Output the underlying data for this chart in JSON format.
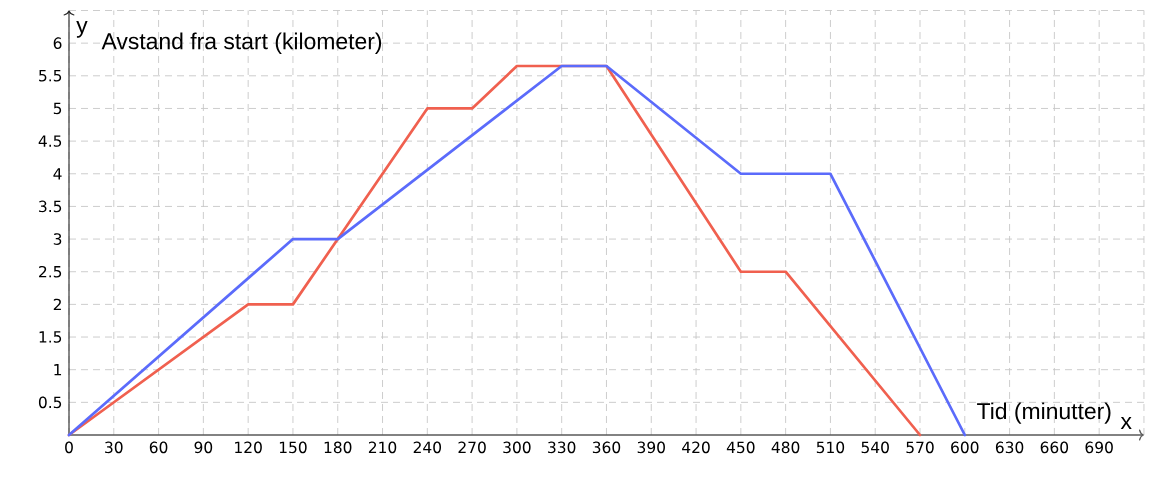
{
  "chart_data": {
    "type": "line",
    "xlabel": "Tid (minutter)",
    "ylabel": "Avstand fra start (kilometer)",
    "annotations": [
      "y",
      "x"
    ],
    "series": [
      {
        "color": "#f0604f",
        "x": [
          0,
          120,
          150,
          240,
          270,
          300,
          360,
          450,
          480,
          570
        ],
        "values": [
          0,
          2,
          2,
          5,
          5,
          5.65,
          5.65,
          2.5,
          2.5,
          0
        ]
      },
      {
        "color": "#5b6bfb",
        "x": [
          0,
          150,
          180,
          330,
          360,
          450,
          510,
          600
        ],
        "values": [
          0,
          3,
          3,
          5.65,
          5.65,
          4,
          4,
          0
        ]
      }
    ],
    "xlim": [
      0,
      720
    ],
    "ylim": [
      0,
      6.5
    ],
    "xticks": [
      0,
      30,
      60,
      90,
      120,
      150,
      180,
      210,
      240,
      270,
      300,
      330,
      360,
      390,
      420,
      450,
      480,
      510,
      540,
      570,
      600,
      630,
      660,
      690,
      {
        "value": 720,
        "label": null
      }
    ],
    "yticks": [
      0.5,
      1,
      1.5,
      2,
      2.5,
      3,
      3.5,
      4,
      4.5,
      5,
      5.5,
      6,
      {
        "value": 6.5,
        "label": null
      }
    ],
    "grid": true,
    "legend": false,
    "marker": "none",
    "line_style": "solid"
  }
}
